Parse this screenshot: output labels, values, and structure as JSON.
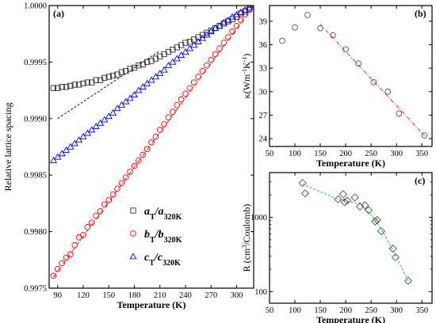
{
  "chart_data": [
    {
      "panel": "(a)",
      "type": "scatter",
      "xlabel": "Temperature (K)",
      "ylabel": "Relative lattice spacing",
      "xlim": [
        80,
        320
      ],
      "ylim": [
        0.9975,
        1.0
      ],
      "xticks": [
        90,
        120,
        150,
        180,
        210,
        240,
        270,
        300
      ],
      "yticks": [
        0.9975,
        0.998,
        0.9985,
        0.999,
        0.9995,
        1.0
      ],
      "ytick_labels": [
        "0.9975",
        "0.9980",
        "0.9985",
        "0.9990",
        "0.9995",
        "1.0000"
      ],
      "legend_position": "bottom-right",
      "series": [
        {
          "name_parts": [
            "a",
            "T",
            "/a",
            "320K"
          ],
          "marker": "square",
          "color": "#333333",
          "x": [
            85,
            90,
            95,
            100,
            105,
            110,
            115,
            120,
            125,
            130,
            135,
            140,
            145,
            150,
            155,
            160,
            165,
            170,
            175,
            180,
            185,
            190,
            195,
            200,
            205,
            210,
            215,
            220,
            225,
            230,
            235,
            240,
            245,
            250,
            255,
            260,
            265,
            270,
            275,
            280,
            285,
            290,
            295,
            300,
            305,
            310,
            315,
            320
          ],
          "y": [
            0.99927,
            0.99927,
            0.99928,
            0.99928,
            0.99929,
            0.9993,
            0.9993,
            0.99931,
            0.99932,
            0.99932,
            0.99934,
            0.99934,
            0.99936,
            0.99937,
            0.99938,
            0.99939,
            0.99941,
            0.99942,
            0.99944,
            0.99945,
            0.99947,
            0.99948,
            0.9995,
            0.99951,
            0.99953,
            0.99955,
            0.99957,
            0.99959,
            0.99961,
            0.99963,
            0.99965,
            0.99967,
            0.99968,
            0.9997,
            0.99972,
            0.99974,
            0.99976,
            0.99978,
            0.9998,
            0.99982,
            0.99984,
            0.99986,
            0.99988,
            0.9999,
            0.99993,
            0.99995,
            0.99997,
            1.0
          ],
          "fit": {
            "style": "dashed",
            "color": "#000000",
            "x": [
              90,
              210
            ],
            "y": [
              0.999,
              0.9996
            ]
          }
        },
        {
          "name_parts": [
            "b",
            "T",
            "/b",
            "320K"
          ],
          "marker": "circle",
          "color": "#ff0000",
          "x": [
            85,
            90,
            95,
            100,
            105,
            110,
            115,
            120,
            125,
            130,
            135,
            140,
            145,
            150,
            155,
            160,
            165,
            170,
            175,
            180,
            185,
            190,
            195,
            200,
            205,
            210,
            215,
            220,
            225,
            230,
            235,
            240,
            245,
            250,
            255,
            260,
            265,
            270,
            275,
            280,
            285,
            290,
            295,
            300,
            305,
            310,
            315,
            320
          ],
          "y": [
            0.99761,
            0.99767,
            0.99772,
            0.99777,
            0.9978,
            0.99788,
            0.99795,
            0.99797,
            0.99804,
            0.99808,
            0.99814,
            0.99818,
            0.99824,
            0.99828,
            0.99833,
            0.99838,
            0.99843,
            0.99848,
            0.99853,
            0.99858,
            0.99863,
            0.99868,
            0.99873,
            0.99879,
            0.99884,
            0.9989,
            0.99895,
            0.99901,
            0.99906,
            0.99912,
            0.99917,
            0.99922,
            0.99927,
            0.99932,
            0.99937,
            0.99942,
            0.99947,
            0.99952,
            0.99957,
            0.99962,
            0.99967,
            0.99972,
            0.99977,
            0.99982,
            0.99987,
            0.99992,
            0.99996,
            1.0
          ],
          "fit": {
            "style": "dash-dot",
            "color": "#ff0000",
            "x": [
              85,
              320
            ],
            "y": [
              0.9976,
              1.0
            ]
          }
        },
        {
          "name_parts": [
            "c",
            "T",
            "/c",
            "320K"
          ],
          "marker": "triangle",
          "color": "#0000ff",
          "x": [
            85,
            90,
            95,
            100,
            105,
            110,
            115,
            120,
            125,
            130,
            135,
            140,
            145,
            150,
            155,
            160,
            165,
            170,
            175,
            180,
            185,
            190,
            195,
            200,
            205,
            210,
            215,
            220,
            225,
            230,
            235,
            240,
            245,
            250,
            255,
            260,
            265,
            270,
            275,
            280,
            285,
            290,
            295,
            300,
            305,
            310,
            315,
            320
          ],
          "y": [
            0.99863,
            0.99866,
            0.99869,
            0.99872,
            0.99875,
            0.99878,
            0.99881,
            0.99884,
            0.99887,
            0.9989,
            0.99893,
            0.99896,
            0.99899,
            0.99902,
            0.99905,
            0.99909,
            0.99912,
            0.99915,
            0.99918,
            0.99921,
            0.99925,
            0.99928,
            0.99931,
            0.99934,
            0.99937,
            0.9994,
            0.99943,
            0.99947,
            0.9995,
            0.99953,
            0.99956,
            0.99959,
            0.99962,
            0.99965,
            0.99968,
            0.99971,
            0.99974,
            0.99977,
            0.9998,
            0.99982,
            0.99985,
            0.99987,
            0.9999,
            0.99992,
            0.99994,
            0.99996,
            0.99998,
            1.0
          ]
        }
      ]
    },
    {
      "panel": "(b)",
      "type": "scatter",
      "xlabel": "Temperature (K)",
      "ylabel_parts": [
        "κ(Wm",
        "-1",
        "K",
        "-1",
        ")"
      ],
      "xlim": [
        50,
        370
      ],
      "ylim": [
        23,
        41
      ],
      "xticks": [
        50,
        100,
        150,
        200,
        250,
        300,
        350
      ],
      "yticks": [
        24,
        27,
        30,
        33,
        36,
        39
      ],
      "marker": "circle",
      "marker_color": "#555555",
      "x": [
        75,
        100,
        125,
        150,
        175,
        200,
        225,
        255,
        283,
        305,
        355
      ],
      "y": [
        36.5,
        38.2,
        39.8,
        38.1,
        37.2,
        35.4,
        33.6,
        31.2,
        30.0,
        27.2,
        24.4
      ],
      "fit": {
        "style": "dash-dot",
        "color": "#ff0000",
        "x": [
          150,
          355
        ],
        "y": [
          38.6,
          24.4
        ]
      }
    },
    {
      "panel": "(c)",
      "type": "scatter",
      "xlabel": "Temperature (K)",
      "ylabel_parts": [
        "R (cm",
        "3",
        "/Coulomb)"
      ],
      "yscale": "log",
      "xlim": [
        50,
        370
      ],
      "ylim": [
        70,
        4000
      ],
      "xticks": [
        50,
        100,
        150,
        200,
        250,
        300,
        350
      ],
      "yticks": [
        100,
        1000
      ],
      "marker": "diamond",
      "marker_color": "#555555",
      "x": [
        115,
        120,
        185,
        195,
        198,
        203,
        218,
        228,
        238,
        245,
        258,
        262,
        270,
        293,
        298,
        323
      ],
      "y": [
        2900,
        2100,
        1750,
        2050,
        1600,
        1680,
        1850,
        1400,
        1450,
        1250,
        880,
        920,
        650,
        380,
        290,
        140
      ],
      "fit": {
        "style": "dashed",
        "color": "#00cc00",
        "x": [
          115,
          185,
          230,
          260,
          290,
          323
        ],
        "y": [
          2800,
          1750,
          1500,
          900,
          400,
          140
        ]
      }
    }
  ]
}
